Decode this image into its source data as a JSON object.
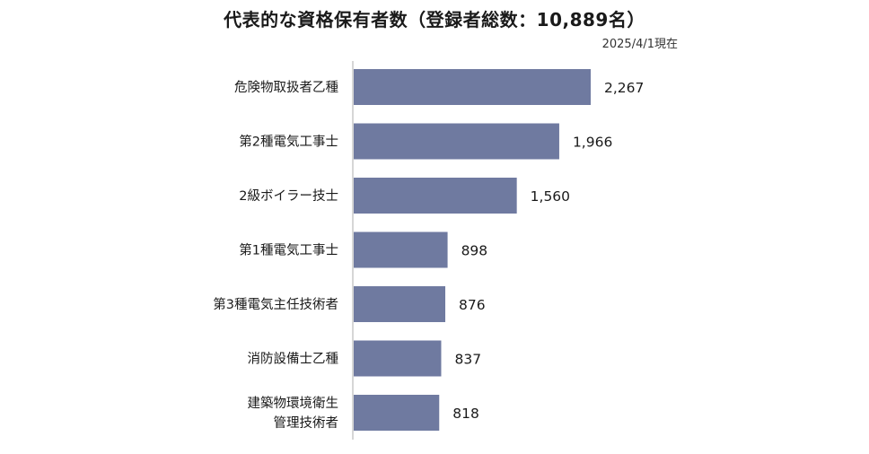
{
  "chart_data": {
    "type": "bar",
    "orientation": "horizontal",
    "title": "代表的な資格保有者数（登録者総数：10,889名）",
    "note": "2025/4/1現在",
    "categories": [
      [
        "危険物取扱者乙種"
      ],
      [
        "第2種電気工事士"
      ],
      [
        "2級ボイラー技士"
      ],
      [
        "第1種電気工事士"
      ],
      [
        "第3種電気主任技術者"
      ],
      [
        "消防設備士乙種"
      ],
      [
        "建築物環境衛生",
        "管理技術者"
      ]
    ],
    "values": [
      2267,
      1966,
      1560,
      898,
      876,
      837,
      818
    ],
    "value_labels": [
      "2,267",
      "1,966",
      "1,560",
      "898",
      "876",
      "837",
      "818"
    ],
    "bar_color": "#6f7aa0",
    "axis_color": "#c8c8c8",
    "xlim": [
      0,
      2267
    ],
    "grid": false
  }
}
